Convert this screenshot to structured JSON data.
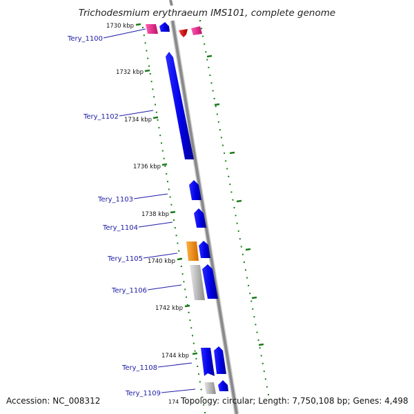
{
  "title": "Trichodesmium erythraeum IMS101, complete genome",
  "footer": {
    "accession": "Accession: NC_008312",
    "topology": "Topology: circular; Length: 7,750,108 bp; Genes: 4,498",
    "truncated_tick": "174"
  },
  "ticks": [
    "1730 kbp",
    "1732 kbp",
    "1734 kbp",
    "1736 kbp",
    "1738 kbp",
    "1740 kbp",
    "1742 kbp",
    "1744 kbp"
  ],
  "gene_labels": [
    "Tery_1100",
    "Tery_1102",
    "Tery_1103",
    "Tery_1104",
    "Tery_1105",
    "Tery_1106",
    "Tery_1108",
    "Tery_1109"
  ],
  "colors": {
    "cds": "#0000ee",
    "cds_light": "#6f6fff",
    "rna": "#ee1b8c",
    "other": "#ff8c00",
    "pseudo": "#b8b8b8",
    "red": "#e00000",
    "backbone": "#8a8a8a",
    "ruler": "#1a7a1a",
    "label": "#1a1aa6"
  }
}
